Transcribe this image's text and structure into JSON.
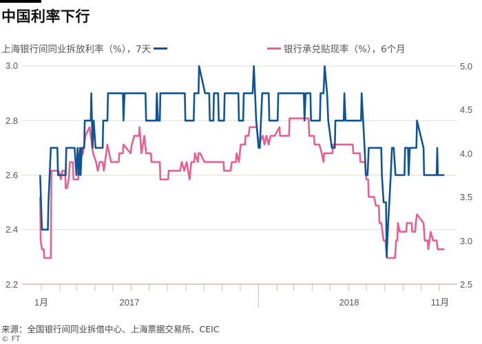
{
  "title": "中国利率下行",
  "legend": {
    "left_series": "上海银行间同业拆放利率（%），7天",
    "right_series": "银行承兑贴现率（%），6个月"
  },
  "source": "来源：全国银行间同业拆借中心、上海票据交易所、CEIC",
  "copyright": "© FT",
  "colors": {
    "shibor": "#0f5499",
    "discount": "#eb5e8d",
    "grid": "#e0dcd6",
    "axis": "#ccc1b7"
  },
  "chart_data": {
    "type": "line",
    "x_tick_labels": [
      "1月",
      "2017",
      "2018",
      "11月"
    ],
    "x_range": [
      "2016-12-30",
      "2018-11-09"
    ],
    "left_axis": {
      "ylim": [
        2.2,
        3.0
      ],
      "ticks": [
        "3.0",
        "2.8",
        "2.6",
        "2.4",
        "2.2"
      ]
    },
    "right_axis": {
      "ylim": [
        2.5,
        5.0
      ],
      "ticks": [
        "5.0",
        "4.5",
        "4.0",
        "3.5",
        "3.0",
        "2.5"
      ]
    },
    "grid": true,
    "legend_position": "top",
    "series": [
      {
        "name": "上海银行间同业拆放利率（%），7天",
        "axis": "left",
        "color": "#0f5499",
        "points": [
          [
            "2016-12-30",
            2.6
          ],
          [
            "2017-01-02",
            2.4
          ],
          [
            "2017-01-12",
            2.4
          ],
          [
            "2017-01-13",
            2.5
          ],
          [
            "2017-01-15",
            2.6
          ],
          [
            "2017-01-17",
            2.7
          ],
          [
            "2017-01-28",
            2.7
          ],
          [
            "2017-01-29",
            2.6
          ],
          [
            "2017-02-11",
            2.6
          ],
          [
            "2017-02-12",
            2.7
          ],
          [
            "2017-02-26",
            2.7
          ],
          [
            "2017-03-01",
            2.6
          ],
          [
            "2017-03-03",
            2.7
          ],
          [
            "2017-03-05",
            2.6
          ],
          [
            "2017-03-07",
            2.7
          ],
          [
            "2017-03-08",
            2.6
          ],
          [
            "2017-03-10",
            2.7
          ],
          [
            "2017-03-14",
            2.7
          ],
          [
            "2017-03-15",
            2.8
          ],
          [
            "2017-03-25",
            2.8
          ],
          [
            "2017-03-26",
            2.9
          ],
          [
            "2017-03-28",
            2.7
          ],
          [
            "2017-03-30",
            2.8
          ],
          [
            "2017-04-02",
            2.7
          ],
          [
            "2017-04-14",
            2.7
          ],
          [
            "2017-04-15",
            2.8
          ],
          [
            "2017-04-22",
            2.8
          ],
          [
            "2017-04-23",
            2.9
          ],
          [
            "2017-05-18",
            2.9
          ],
          [
            "2017-05-19",
            2.8
          ],
          [
            "2017-05-21",
            2.9
          ],
          [
            "2017-06-25",
            2.9
          ],
          [
            "2017-06-26",
            2.8
          ],
          [
            "2017-07-13",
            2.8
          ],
          [
            "2017-07-14",
            2.9
          ],
          [
            "2017-07-16",
            2.8
          ],
          [
            "2017-07-19",
            2.8
          ],
          [
            "2017-07-20",
            2.9
          ],
          [
            "2017-08-30",
            2.9
          ],
          [
            "2017-08-31",
            2.8
          ],
          [
            "2017-09-14",
            2.8
          ],
          [
            "2017-09-15",
            2.9
          ],
          [
            "2017-09-22",
            2.9
          ],
          [
            "2017-09-23",
            3.0
          ],
          [
            "2017-10-03",
            2.9
          ],
          [
            "2017-10-10",
            2.9
          ],
          [
            "2017-10-11",
            2.8
          ],
          [
            "2017-10-17",
            2.8
          ],
          [
            "2017-10-18",
            2.9
          ],
          [
            "2017-10-25",
            2.9
          ],
          [
            "2017-10-26",
            2.8
          ],
          [
            "2017-11-04",
            2.8
          ],
          [
            "2017-11-05",
            2.9
          ],
          [
            "2017-11-28",
            2.9
          ],
          [
            "2017-11-29",
            2.8
          ],
          [
            "2017-12-06",
            2.8
          ],
          [
            "2017-12-07",
            2.9
          ],
          [
            "2017-12-22",
            2.9
          ],
          [
            "2017-12-24",
            3.0
          ],
          [
            "2017-12-28",
            2.8
          ],
          [
            "2018-01-01",
            2.7
          ],
          [
            "2018-01-03",
            2.7
          ],
          [
            "2018-01-05",
            2.8
          ],
          [
            "2018-01-07",
            2.9
          ],
          [
            "2018-01-18",
            2.9
          ],
          [
            "2018-01-19",
            2.8
          ],
          [
            "2018-02-02",
            2.8
          ],
          [
            "2018-02-03",
            2.9
          ],
          [
            "2018-03-18",
            2.9
          ],
          [
            "2018-03-19",
            2.8
          ],
          [
            "2018-03-21",
            2.9
          ],
          [
            "2018-03-29",
            2.9
          ],
          [
            "2018-03-30",
            2.8
          ],
          [
            "2018-04-14",
            2.8
          ],
          [
            "2018-04-15",
            2.9
          ],
          [
            "2018-04-20",
            2.9
          ],
          [
            "2018-04-22",
            3.0
          ],
          [
            "2018-04-26",
            2.9
          ],
          [
            "2018-04-28",
            2.8
          ],
          [
            "2018-05-04",
            2.7
          ],
          [
            "2018-05-09",
            2.7
          ],
          [
            "2018-05-10",
            2.8
          ],
          [
            "2018-05-24",
            2.8
          ],
          [
            "2018-05-25",
            2.9
          ],
          [
            "2018-05-27",
            2.8
          ],
          [
            "2018-06-22",
            2.8
          ],
          [
            "2018-06-23",
            2.9
          ],
          [
            "2018-06-28",
            2.7
          ],
          [
            "2018-06-30",
            2.6
          ],
          [
            "2018-07-03",
            2.6
          ],
          [
            "2018-07-05",
            2.7
          ],
          [
            "2018-07-26",
            2.7
          ],
          [
            "2018-07-27",
            2.6
          ],
          [
            "2018-07-30",
            2.5
          ],
          [
            "2018-08-03",
            2.5
          ],
          [
            "2018-08-04",
            2.3
          ],
          [
            "2018-08-06",
            2.4
          ],
          [
            "2018-08-11",
            2.6
          ],
          [
            "2018-08-13",
            2.7
          ],
          [
            "2018-08-16",
            2.7
          ],
          [
            "2018-08-19",
            2.6
          ],
          [
            "2018-09-03",
            2.6
          ],
          [
            "2018-09-04",
            2.7
          ],
          [
            "2018-09-09",
            2.7
          ],
          [
            "2018-09-10",
            2.6
          ],
          [
            "2018-09-12",
            2.7
          ],
          [
            "2018-09-23",
            2.7
          ],
          [
            "2018-09-24",
            2.8
          ],
          [
            "2018-10-05",
            2.7
          ],
          [
            "2018-10-06",
            2.6
          ],
          [
            "2018-10-27",
            2.6
          ],
          [
            "2018-10-28",
            2.7
          ],
          [
            "2018-10-29",
            2.6
          ],
          [
            "2018-11-09",
            2.6
          ]
        ]
      },
      {
        "name": "银行承兑贴现率（%），6个月",
        "axis": "right",
        "color": "#eb5e8d",
        "points": [
          [
            "2016-12-30",
            3.5
          ],
          [
            "2016-12-31",
            3.0
          ],
          [
            "2017-01-02",
            2.9
          ],
          [
            "2017-01-05",
            2.9
          ],
          [
            "2017-01-06",
            2.8
          ],
          [
            "2017-01-17",
            2.8
          ],
          [
            "2017-01-18",
            3.8
          ],
          [
            "2017-01-30",
            3.8
          ],
          [
            "2017-02-03",
            3.7
          ],
          [
            "2017-02-05",
            3.8
          ],
          [
            "2017-02-10",
            3.8
          ],
          [
            "2017-02-11",
            3.6
          ],
          [
            "2017-02-13",
            3.6
          ],
          [
            "2017-02-16",
            3.7
          ],
          [
            "2017-02-18",
            3.9
          ],
          [
            "2017-02-23",
            3.9
          ],
          [
            "2017-02-24",
            3.7
          ],
          [
            "2017-03-04",
            3.7
          ],
          [
            "2017-03-05",
            3.9
          ],
          [
            "2017-03-12",
            4.0
          ],
          [
            "2017-03-16",
            4.2
          ],
          [
            "2017-03-23",
            4.3
          ],
          [
            "2017-03-29",
            4.0
          ],
          [
            "2017-04-03",
            3.9
          ],
          [
            "2017-04-06",
            3.8
          ],
          [
            "2017-04-09",
            3.9
          ],
          [
            "2017-04-14",
            3.9
          ],
          [
            "2017-04-16",
            3.8
          ],
          [
            "2017-04-22",
            4.1
          ],
          [
            "2017-04-28",
            3.9
          ],
          [
            "2017-05-11",
            3.9
          ],
          [
            "2017-05-12",
            4.0
          ],
          [
            "2017-05-18",
            4.0
          ],
          [
            "2017-05-19",
            4.1
          ],
          [
            "2017-05-31",
            4.0
          ],
          [
            "2017-06-02",
            4.1
          ],
          [
            "2017-06-06",
            4.2
          ],
          [
            "2017-06-14",
            4.2
          ],
          [
            "2017-06-15",
            4.3
          ],
          [
            "2017-06-18",
            4.0
          ],
          [
            "2017-06-23",
            4.2
          ],
          [
            "2017-06-26",
            4.0
          ],
          [
            "2017-07-04",
            4.0
          ],
          [
            "2017-07-05",
            3.9
          ],
          [
            "2017-07-19",
            3.9
          ],
          [
            "2017-07-20",
            3.7
          ],
          [
            "2017-08-02",
            3.7
          ],
          [
            "2017-08-03",
            3.8
          ],
          [
            "2017-08-22",
            3.8
          ],
          [
            "2017-08-25",
            3.9
          ],
          [
            "2017-08-29",
            3.8
          ],
          [
            "2017-09-02",
            3.9
          ],
          [
            "2017-09-07",
            3.7
          ],
          [
            "2017-09-10",
            3.9
          ],
          [
            "2017-09-15",
            3.9
          ],
          [
            "2017-09-16",
            4.0
          ],
          [
            "2017-09-21",
            3.9
          ],
          [
            "2017-09-22",
            4.0
          ],
          [
            "2017-09-25",
            4.0
          ],
          [
            "2017-10-02",
            3.9
          ],
          [
            "2017-11-03",
            3.9
          ],
          [
            "2017-11-04",
            3.8
          ],
          [
            "2017-11-15",
            3.8
          ],
          [
            "2017-11-17",
            3.9
          ],
          [
            "2017-11-24",
            3.9
          ],
          [
            "2017-11-25",
            4.0
          ],
          [
            "2017-11-29",
            3.9
          ],
          [
            "2017-12-02",
            4.1
          ],
          [
            "2017-12-09",
            4.1
          ],
          [
            "2017-12-10",
            4.2
          ],
          [
            "2017-12-15",
            4.2
          ],
          [
            "2017-12-17",
            4.3
          ],
          [
            "2017-12-29",
            4.3
          ],
          [
            "2018-01-01",
            4.1
          ],
          [
            "2018-01-08",
            4.2
          ],
          [
            "2018-01-11",
            4.1
          ],
          [
            "2018-01-14",
            4.2
          ],
          [
            "2018-01-18",
            4.1
          ],
          [
            "2018-01-21",
            4.2
          ],
          [
            "2018-01-28",
            4.2
          ],
          [
            "2018-02-05",
            4.3
          ],
          [
            "2018-02-06",
            4.2
          ],
          [
            "2018-02-21",
            4.2
          ],
          [
            "2018-02-22",
            4.4
          ],
          [
            "2018-03-26",
            4.4
          ],
          [
            "2018-03-27",
            4.2
          ],
          [
            "2018-04-04",
            4.2
          ],
          [
            "2018-04-05",
            4.1
          ],
          [
            "2018-04-13",
            4.1
          ],
          [
            "2018-04-17",
            4.0
          ],
          [
            "2018-04-20",
            3.9
          ],
          [
            "2018-04-21",
            4.0
          ],
          [
            "2018-05-05",
            4.0
          ],
          [
            "2018-05-06",
            4.1
          ],
          [
            "2018-06-08",
            4.1
          ],
          [
            "2018-06-09",
            4.0
          ],
          [
            "2018-06-20",
            4.0
          ],
          [
            "2018-06-21",
            3.9
          ],
          [
            "2018-06-29",
            3.9
          ],
          [
            "2018-07-01",
            3.7
          ],
          [
            "2018-07-04",
            3.7
          ],
          [
            "2018-07-05",
            3.5
          ],
          [
            "2018-07-14",
            3.5
          ],
          [
            "2018-07-17",
            3.4
          ],
          [
            "2018-07-22",
            3.4
          ],
          [
            "2018-07-23",
            3.2
          ],
          [
            "2018-07-26",
            3.2
          ],
          [
            "2018-07-30",
            3.0
          ],
          [
            "2018-08-02",
            3.0
          ],
          [
            "2018-08-03",
            2.9
          ],
          [
            "2018-08-05",
            2.8
          ],
          [
            "2018-08-18",
            2.8
          ],
          [
            "2018-08-20",
            3.0
          ],
          [
            "2018-08-22",
            3.0
          ],
          [
            "2018-08-23",
            3.2
          ],
          [
            "2018-08-26",
            3.1
          ],
          [
            "2018-09-06",
            3.1
          ],
          [
            "2018-09-07",
            3.2
          ],
          [
            "2018-09-15",
            3.2
          ],
          [
            "2018-09-16",
            3.1
          ],
          [
            "2018-09-21",
            3.1
          ],
          [
            "2018-09-22",
            3.2
          ],
          [
            "2018-09-24",
            3.3
          ],
          [
            "2018-10-05",
            3.2
          ],
          [
            "2018-10-07",
            3.0
          ],
          [
            "2018-10-12",
            3.0
          ],
          [
            "2018-10-13",
            2.9
          ],
          [
            "2018-10-17",
            3.1
          ],
          [
            "2018-10-21",
            3.0
          ],
          [
            "2018-10-27",
            3.0
          ],
          [
            "2018-10-29",
            2.9
          ],
          [
            "2018-11-09",
            2.9
          ]
        ]
      }
    ]
  }
}
